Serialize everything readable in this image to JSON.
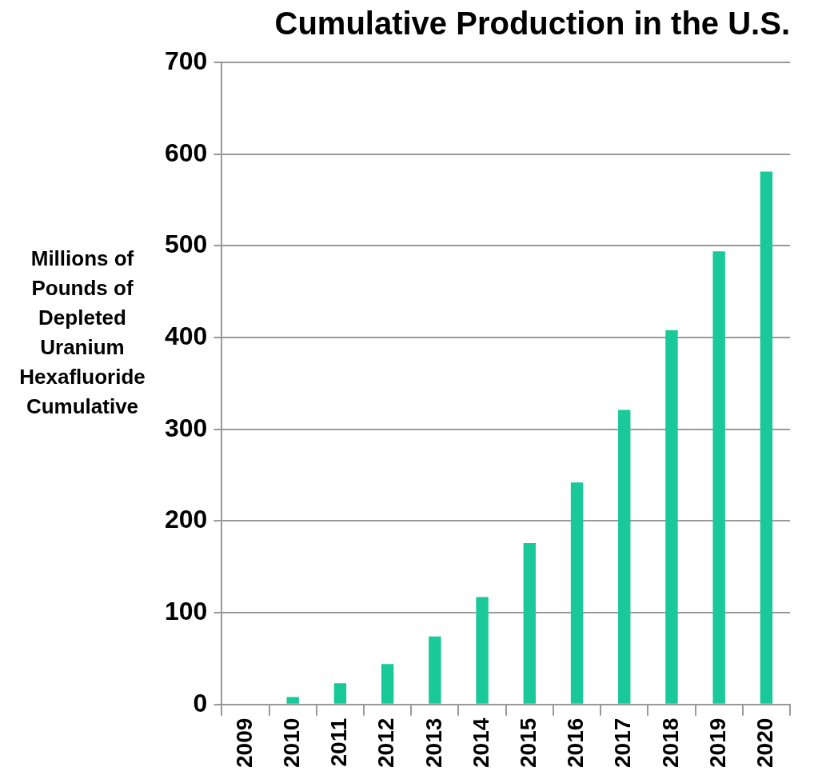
{
  "chart_data": {
    "type": "bar",
    "title": "Cumulative Production in the U.S.",
    "ylabel": "Millions of Pounds of Depleted Uranium Hexafluoride Cumulative",
    "categories": [
      "2009",
      "2010",
      "2011",
      "2012",
      "2013",
      "2014",
      "2015",
      "2016",
      "2017",
      "2018",
      "2019",
      "2020"
    ],
    "values": [
      0,
      8,
      23,
      44,
      74,
      117,
      176,
      242,
      321,
      408,
      494,
      581
    ],
    "color": "#19c99a",
    "ylim": [
      0,
      700
    ],
    "yticks": [
      0,
      100,
      200,
      300,
      400,
      500,
      600,
      700
    ],
    "grid": "y",
    "legend": false
  }
}
